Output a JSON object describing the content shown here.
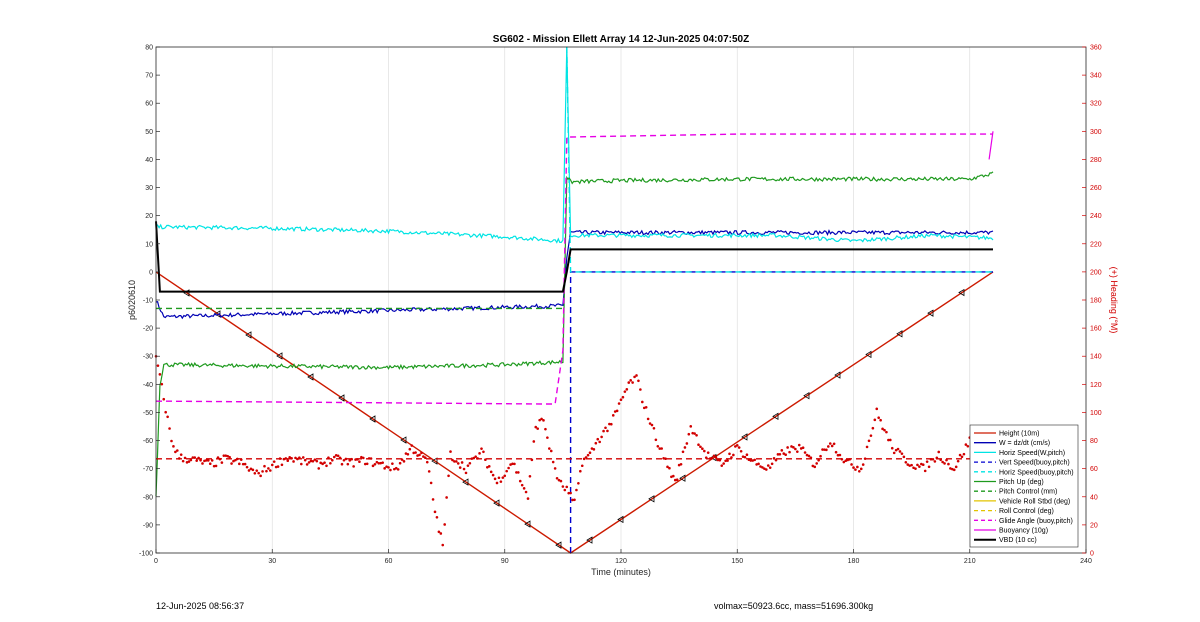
{
  "chart_data": {
    "type": "line",
    "title": "SG602 - Mission Ellett Array 14 12-Jun-2025 04:07:50Z",
    "xlabel": "Time (minutes)",
    "ylabel": "p6020610",
    "y2label": "(+) Heading (°M)",
    "xlim": [
      0,
      240
    ],
    "ylim": [
      -100,
      80
    ],
    "y2lim": [
      0,
      360
    ],
    "xticks": [
      0,
      30,
      60,
      90,
      120,
      150,
      180,
      210,
      240
    ],
    "yticks": [
      -100,
      -90,
      -80,
      -70,
      -60,
      -50,
      -40,
      -30,
      -20,
      -10,
      0,
      10,
      20,
      30,
      40,
      50,
      60,
      70,
      80
    ],
    "y2ticks": [
      0,
      20,
      40,
      60,
      80,
      100,
      120,
      140,
      160,
      180,
      200,
      220,
      240,
      260,
      280,
      300,
      320,
      340,
      360
    ],
    "grid": "x-only",
    "legend_position": "bottom-right",
    "series": [
      {
        "name": "Height (10m)",
        "color": "#cc1a00",
        "style": "solid-triangles",
        "x": [
          0,
          107,
          216
        ],
        "y": [
          0,
          -100,
          0
        ]
      },
      {
        "name": "W = dz/dt (cm/s)",
        "color": "#0000b4",
        "style": "solid-noisy",
        "x": [
          0,
          2,
          105,
          106,
          107,
          216
        ],
        "y": [
          -10,
          -16,
          -12,
          5,
          14,
          14
        ]
      },
      {
        "name": "Horiz Speed(W,pitch)",
        "color": "#00e4e4",
        "style": "solid-noisy",
        "x": [
          0,
          2,
          30,
          60,
          90,
          105,
          106,
          107,
          120,
          140,
          160,
          180,
          200,
          216
        ],
        "y": [
          16,
          16,
          15.5,
          14.5,
          12.5,
          11,
          80,
          13,
          13,
          13,
          13,
          11,
          13,
          12
        ]
      },
      {
        "name": "Vert Speed(buoy,pitch)",
        "color": "#0000d0",
        "style": "dashed",
        "x": [
          107,
          107,
          216
        ],
        "y": [
          -100,
          0,
          0
        ]
      },
      {
        "name": "Horiz Speed(buoy,pitch)",
        "color": "#00e4e4",
        "style": "dashed",
        "x": [
          106,
          107,
          216
        ],
        "y": [
          80,
          0,
          0
        ]
      },
      {
        "name": "Pitch Up (deg)",
        "color": "#1e9a1e",
        "style": "solid-noisy",
        "x": [
          0,
          1,
          2,
          30,
          60,
          90,
          105,
          106,
          107,
          120,
          150,
          180,
          210,
          216
        ],
        "y": [
          -80,
          -40,
          -33,
          -33.5,
          -34,
          -33,
          -32,
          34,
          32,
          32.5,
          33,
          33,
          33,
          35
        ]
      },
      {
        "name": "Pitch Control (mm)",
        "color": "#1e9a1e",
        "style": "dashed",
        "x": [
          0,
          105
        ],
        "y": [
          -13,
          -13
        ]
      },
      {
        "name": "Vehicle Roll Stbd (deg)",
        "color": "#e3c400",
        "style": "solid-stepped",
        "x": [],
        "y": []
      },
      {
        "name": "Roll Control (deg)",
        "color": "#e3c400",
        "style": "dashed-stepped",
        "x": [],
        "y": []
      },
      {
        "name": "Glide Angle (buoy,pitch)",
        "color": "#e600e6",
        "style": "dashed",
        "x": [
          0,
          3,
          100,
          103,
          105,
          106,
          107,
          150,
          216
        ],
        "y": [
          -46,
          -46,
          -47,
          -47,
          -28,
          48,
          48,
          49,
          49
        ]
      },
      {
        "name": "Buoyancy (10g)",
        "color": "#e600e6",
        "style": "solid",
        "x": [
          215,
          216
        ],
        "y": [
          40,
          50
        ]
      },
      {
        "name": "VBD (10 cc)",
        "color": "#000000",
        "style": "solid-thick",
        "x": [
          0,
          1,
          105,
          106,
          107,
          216
        ],
        "y": [
          18,
          -7,
          -7,
          0,
          8,
          8
        ]
      },
      {
        "name": "Heading (right axis)",
        "color": "#d20000",
        "style": "dotted",
        "axis": "right",
        "x": [
          0,
          2,
          4,
          6,
          10,
          14,
          18,
          22,
          26,
          30,
          34,
          38,
          42,
          46,
          50,
          54,
          58,
          62,
          66,
          70,
          72,
          74,
          76,
          80,
          84,
          88,
          92,
          96,
          98,
          100,
          102,
          104,
          106,
          108,
          110,
          112,
          114,
          118,
          122,
          124,
          126,
          130,
          134,
          138,
          142,
          146,
          150,
          154,
          158,
          162,
          166,
          170,
          174,
          178,
          182,
          186,
          190,
          194,
          198,
          202,
          206,
          210,
          214,
          216
        ],
        "y": [
          140,
          110,
          80,
          68,
          66,
          63,
          67,
          64,
          56,
          62,
          68,
          65,
          63,
          67,
          64,
          66,
          63,
          60,
          75,
          65,
          30,
          5,
          70,
          60,
          72,
          50,
          65,
          40,
          90,
          95,
          70,
          50,
          45,
          35,
          65,
          70,
          80,
          95,
          120,
          125,
          105,
          75,
          50,
          90,
          70,
          63,
          75,
          65,
          60,
          72,
          75,
          63,
          80,
          65,
          60,
          100,
          75,
          65,
          60,
          70,
          60,
          80,
          65,
          70
        ]
      },
      {
        "name": "Heading mean (right axis)",
        "color": "#d20000",
        "style": "dashed",
        "axis": "right",
        "x": [
          0,
          216
        ],
        "y": [
          67,
          67
        ]
      }
    ]
  },
  "footer": {
    "date": "12-Jun-2025 08:56:37",
    "info": "volmax=50923.6cc, mass=51696.300kg"
  }
}
